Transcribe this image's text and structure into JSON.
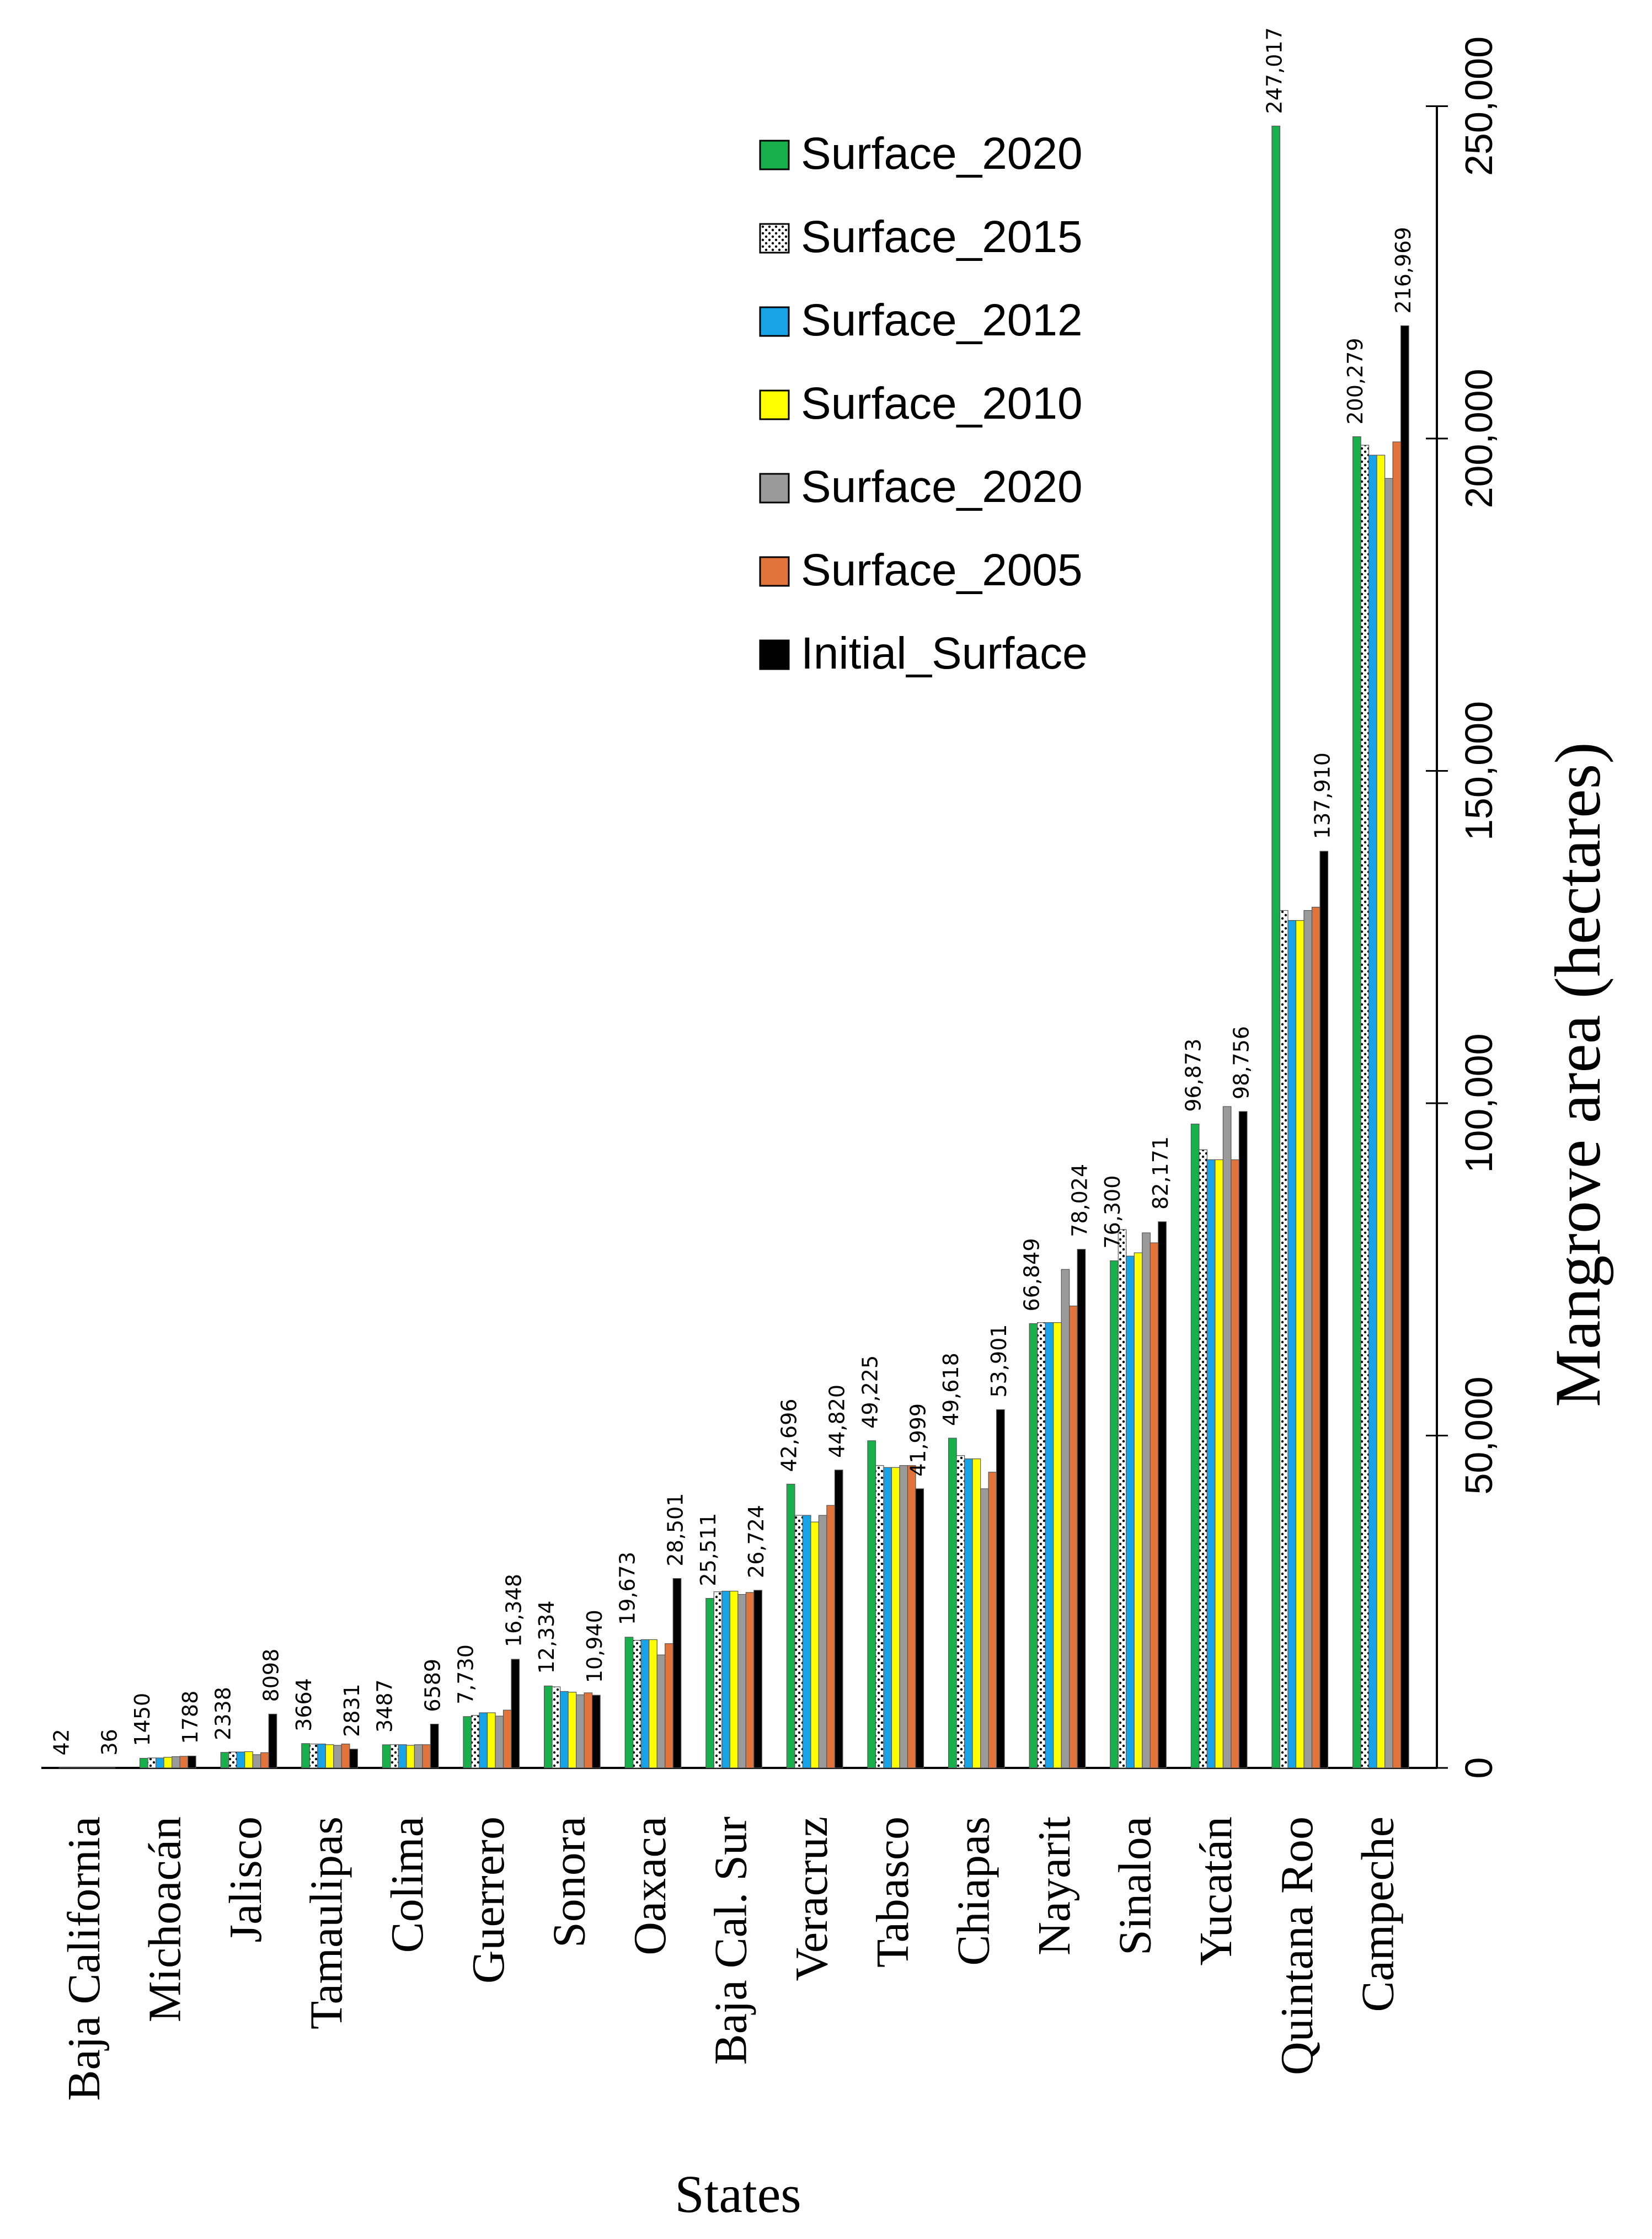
{
  "chart_data": {
    "type": "bar",
    "orientation": "horizontal, figure rotated 90° clockwise (categories along bottom, values increasing upward along right side)",
    "xlabel": "States",
    "ylabel": "Mangrove area (hectares)",
    "ylim": [
      0,
      250000
    ],
    "yticks": [
      0,
      50000,
      100000,
      150000,
      200000,
      250000
    ],
    "ytick_labels": [
      "0",
      "50,000",
      "100,000",
      "150,000",
      "200,000",
      "250,000"
    ],
    "grid": false,
    "legend_position": "top-left",
    "categories": [
      "Baja California",
      "Michoacán",
      "Jalisco",
      "Tamaulipas",
      "Colima",
      "Guerrero",
      "Sonora",
      "Oaxaca",
      "Baja Cal. Sur",
      "Veracruz",
      "Tabasco",
      "Chiapas",
      "Nayarit",
      "Sinaloa",
      "Yucatán",
      "Quintana Roo",
      "Campeche"
    ],
    "series": [
      {
        "name": "Surface_2020",
        "color": "#17b04a",
        "pattern": "solid",
        "values": [
          42,
          1450,
          2338,
          3664,
          3487,
          7730,
          12334,
          19673,
          25511,
          42696,
          49225,
          49618,
          66849,
          76300,
          96873,
          247017,
          200279
        ]
      },
      {
        "name": "Surface_2015",
        "color": "#ffffff",
        "pattern": "dotted",
        "values": [
          40,
          1500,
          2400,
          3600,
          3500,
          7900,
          12200,
          19200,
          26500,
          38000,
          45500,
          47000,
          67000,
          81000,
          93000,
          129000,
          199000
        ]
      },
      {
        "name": "Surface_2012",
        "color": "#17a3e6",
        "pattern": "solid",
        "values": [
          38,
          1500,
          2400,
          3600,
          3500,
          8300,
          11500,
          19300,
          26600,
          38000,
          45200,
          46500,
          67000,
          77000,
          91500,
          127500,
          197500
        ]
      },
      {
        "name": "Surface_2010",
        "color": "#ffff00",
        "pattern": "solid",
        "values": [
          37,
          1600,
          2450,
          3500,
          3400,
          8300,
          11400,
          19300,
          26600,
          37000,
          45200,
          46500,
          67000,
          77500,
          91500,
          127500,
          197500
        ]
      },
      {
        "name": "Surface_2020",
        "color": "#9a9a9a",
        "pattern": "solid",
        "values": [
          36,
          1700,
          2000,
          3400,
          3500,
          7800,
          11000,
          17000,
          26100,
          38000,
          45500,
          42000,
          75000,
          80500,
          99500,
          129000,
          194000
        ]
      },
      {
        "name": "Surface_2005",
        "color": "#e0743a",
        "pattern": "solid",
        "values": [
          38,
          1750,
          2300,
          3600,
          3500,
          8700,
          11300,
          18700,
          26400,
          39500,
          45500,
          44500,
          69500,
          79000,
          91500,
          129500,
          199500
        ]
      },
      {
        "name": "Initial_Surface",
        "color": "#000000",
        "pattern": "solid",
        "values": [
          36,
          1788,
          8098,
          2831,
          6589,
          16348,
          10940,
          28501,
          26724,
          44820,
          41999,
          53901,
          78024,
          82171,
          98756,
          137910,
          216969
        ]
      }
    ],
    "data_labels": [
      {
        "category": "Baja California",
        "series_index": 0,
        "text": "42"
      },
      {
        "category": "Baja California",
        "series_index": 6,
        "text": "36"
      },
      {
        "category": "Michoacán",
        "series_index": 0,
        "text": "1450"
      },
      {
        "category": "Michoacán",
        "series_index": 6,
        "text": "1788"
      },
      {
        "category": "Jalisco",
        "series_index": 0,
        "text": "2338"
      },
      {
        "category": "Jalisco",
        "series_index": 6,
        "text": "8098"
      },
      {
        "category": "Tamaulipas",
        "series_index": 0,
        "text": "3664"
      },
      {
        "category": "Tamaulipas",
        "series_index": 6,
        "text": "2831"
      },
      {
        "category": "Colima",
        "series_index": 0,
        "text": "3487"
      },
      {
        "category": "Colima",
        "series_index": 6,
        "text": "6589"
      },
      {
        "category": "Guerrero",
        "series_index": 0,
        "text": "7,730"
      },
      {
        "category": "Guerrero",
        "series_index": 6,
        "text": "16,348"
      },
      {
        "category": "Sonora",
        "series_index": 0,
        "text": "12,334"
      },
      {
        "category": "Sonora",
        "series_index": 6,
        "text": "10,940"
      },
      {
        "category": "Oaxaca",
        "series_index": 0,
        "text": "19,673"
      },
      {
        "category": "Oaxaca",
        "series_index": 6,
        "text": "28,501"
      },
      {
        "category": "Baja Cal. Sur",
        "series_index": 0,
        "text": "25,511"
      },
      {
        "category": "Baja Cal. Sur",
        "series_index": 6,
        "text": "26,724"
      },
      {
        "category": "Veracruz",
        "series_index": 0,
        "text": "42,696"
      },
      {
        "category": "Veracruz",
        "series_index": 6,
        "text": "44,820"
      },
      {
        "category": "Tabasco",
        "series_index": 0,
        "text": "49,225"
      },
      {
        "category": "Tabasco",
        "series_index": 6,
        "text": "41,999"
      },
      {
        "category": "Chiapas",
        "series_index": 0,
        "text": "49,618"
      },
      {
        "category": "Chiapas",
        "series_index": 6,
        "text": "53,901"
      },
      {
        "category": "Nayarit",
        "series_index": 0,
        "text": "66,849"
      },
      {
        "category": "Nayarit",
        "series_index": 6,
        "text": "78,024"
      },
      {
        "category": "Sinaloa",
        "series_index": 0,
        "text": "76,300"
      },
      {
        "category": "Sinaloa",
        "series_index": 6,
        "text": "82,171"
      },
      {
        "category": "Yucatán",
        "series_index": 0,
        "text": "96,873"
      },
      {
        "category": "Yucatán",
        "series_index": 6,
        "text": "98,756"
      },
      {
        "category": "Quintana Roo",
        "series_index": 0,
        "text": "247,017"
      },
      {
        "category": "Quintana Roo",
        "series_index": 6,
        "text": "137,910"
      },
      {
        "category": "Campeche",
        "series_index": 0,
        "text": "200,279"
      },
      {
        "category": "Campeche",
        "series_index": 6,
        "text": "216,969"
      }
    ]
  }
}
